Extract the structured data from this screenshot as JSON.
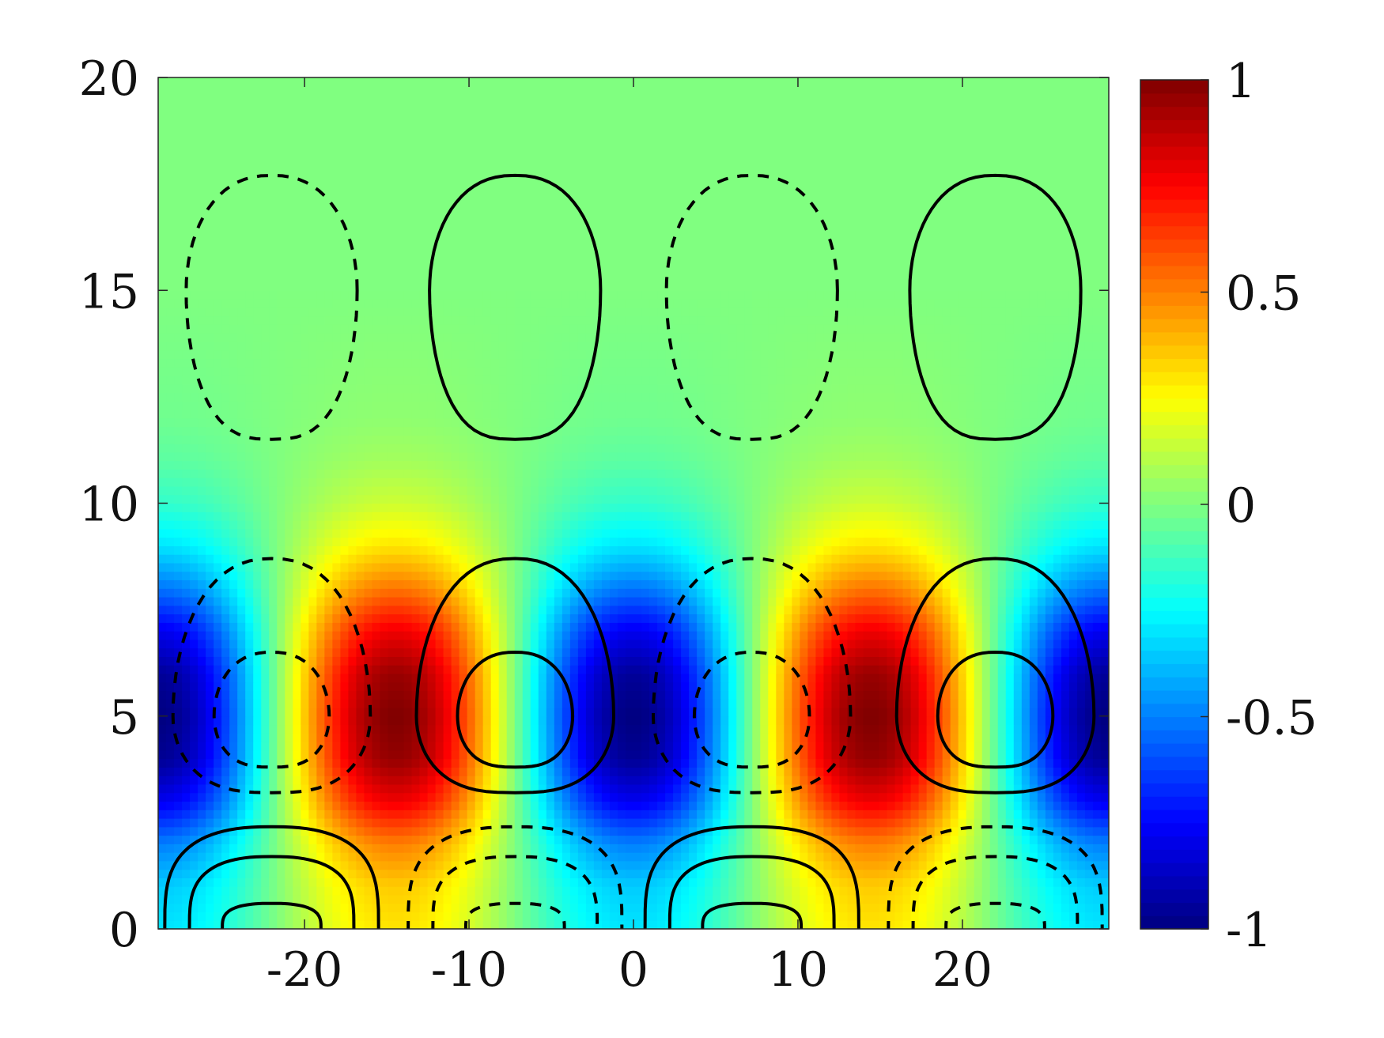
{
  "chart_data": {
    "type": "heatmap",
    "title": "",
    "xlabel": "",
    "ylabel": "",
    "xlim": [
      -28.9,
      28.9
    ],
    "ylim": [
      0,
      20
    ],
    "x_ticks": [
      -20,
      -10,
      0,
      10,
      20
    ],
    "x_tick_labels": [
      "-20",
      "-10",
      "0",
      "10",
      "20"
    ],
    "y_ticks": [
      0,
      5,
      10,
      15,
      20
    ],
    "y_tick_labels": [
      "0",
      "5",
      "10",
      "15",
      "20"
    ],
    "colormap": "jet",
    "colorbar": {
      "range": [
        -1,
        1
      ],
      "ticks": [
        -1,
        -0.5,
        0,
        0.5,
        1
      ],
      "tick_labels": [
        "-1",
        "-0.5",
        "0",
        "0.5",
        "1"
      ]
    },
    "field": {
      "description_level": "normalized field value",
      "wavelength_x": 28.9,
      "row_profile": {
        "y": [
          0,
          1,
          2,
          3,
          4,
          5,
          6,
          7,
          8,
          9,
          10,
          11,
          12,
          13,
          14,
          15,
          16,
          17,
          18,
          19,
          20
        ],
        "amplitude": [
          0.3,
          0.35,
          0.5,
          0.78,
          0.96,
          1.0,
          0.95,
          0.78,
          0.52,
          0.3,
          0.15,
          0.07,
          0.03,
          0.02,
          0.01,
          0.0,
          0.0,
          0.0,
          0.0,
          0.0,
          0.0
        ]
      },
      "extrema": [
        {
          "x": -14.5,
          "y": 5,
          "value": 1
        },
        {
          "x": 0,
          "y": 5,
          "value": -1
        },
        {
          "x": 14.5,
          "y": 5,
          "value": 1
        },
        {
          "x": -28.9,
          "y": 5,
          "value": -1
        },
        {
          "x": 28.9,
          "y": 5,
          "value": -1
        }
      ]
    },
    "contours": {
      "line_color": "#000000",
      "solid": "positive levels",
      "dashed": "negative levels",
      "families": [
        {
          "x_center": -22,
          "y_center": 15,
          "half_width": 5.2,
          "y_top": 17.7,
          "y_bottom": 11.5,
          "style": "dashed"
        },
        {
          "x_center": -7.2,
          "y_center": 15,
          "half_width": 5.2,
          "y_top": 17.7,
          "y_bottom": 11.5,
          "style": "solid"
        },
        {
          "x_center": 7.2,
          "y_center": 15,
          "half_width": 5.2,
          "y_top": 17.7,
          "y_bottom": 11.5,
          "style": "dashed"
        },
        {
          "x_center": 22,
          "y_center": 15,
          "half_width": 5.2,
          "y_top": 17.7,
          "y_bottom": 11.5,
          "style": "solid"
        },
        {
          "x_center": -22,
          "y_center": 5,
          "half_width": 6.0,
          "y_top": 8.7,
          "y_bottom": 3.2,
          "style": "dashed"
        },
        {
          "x_center": -7.2,
          "y_center": 5,
          "half_width": 6.0,
          "y_top": 8.7,
          "y_bottom": 3.2,
          "style": "solid"
        },
        {
          "x_center": 7.2,
          "y_center": 5,
          "half_width": 6.0,
          "y_top": 8.7,
          "y_bottom": 3.2,
          "style": "dashed"
        },
        {
          "x_center": 22,
          "y_center": 5,
          "half_width": 6.0,
          "y_top": 8.7,
          "y_bottom": 3.2,
          "style": "solid"
        },
        {
          "x_center": -22,
          "y_center": 5,
          "half_width": 3.5,
          "y_top": 6.5,
          "y_bottom": 3.8,
          "style": "dashed"
        },
        {
          "x_center": -7.2,
          "y_center": 5,
          "half_width": 3.5,
          "y_top": 6.5,
          "y_bottom": 3.8,
          "style": "solid"
        },
        {
          "x_center": 7.2,
          "y_center": 5,
          "half_width": 3.5,
          "y_top": 6.5,
          "y_bottom": 3.8,
          "style": "dashed"
        },
        {
          "x_center": 22,
          "y_center": 5,
          "half_width": 3.5,
          "y_top": 6.5,
          "y_bottom": 3.8,
          "style": "solid"
        },
        {
          "x_center": -22,
          "y_center": 0,
          "half_width": 6.5,
          "y_top": 2.4,
          "y_bottom": 0,
          "style": "solid"
        },
        {
          "x_center": -22,
          "y_center": 0,
          "half_width": 5.0,
          "y_top": 1.7,
          "y_bottom": 0,
          "style": "solid"
        },
        {
          "x_center": -22,
          "y_center": 0,
          "half_width": 3.0,
          "y_top": 0.6,
          "y_bottom": 0,
          "style": "solid"
        },
        {
          "x_center": -7.2,
          "y_center": 0,
          "half_width": 6.5,
          "y_top": 2.4,
          "y_bottom": 0,
          "style": "dashed"
        },
        {
          "x_center": -7.2,
          "y_center": 0,
          "half_width": 5.0,
          "y_top": 1.7,
          "y_bottom": 0,
          "style": "dashed"
        },
        {
          "x_center": -7.2,
          "y_center": 0,
          "half_width": 3.0,
          "y_top": 0.6,
          "y_bottom": 0,
          "style": "dashed"
        },
        {
          "x_center": 7.2,
          "y_center": 0,
          "half_width": 6.5,
          "y_top": 2.4,
          "y_bottom": 0,
          "style": "solid"
        },
        {
          "x_center": 7.2,
          "y_center": 0,
          "half_width": 5.0,
          "y_top": 1.7,
          "y_bottom": 0,
          "style": "solid"
        },
        {
          "x_center": 7.2,
          "y_center": 0,
          "half_width": 3.0,
          "y_top": 0.6,
          "y_bottom": 0,
          "style": "solid"
        },
        {
          "x_center": 22,
          "y_center": 0,
          "half_width": 6.5,
          "y_top": 2.4,
          "y_bottom": 0,
          "style": "dashed"
        },
        {
          "x_center": 22,
          "y_center": 0,
          "half_width": 5.0,
          "y_top": 1.7,
          "y_bottom": 0,
          "style": "dashed"
        },
        {
          "x_center": 22,
          "y_center": 0,
          "half_width": 3.0,
          "y_top": 0.6,
          "y_bottom": 0,
          "style": "dashed"
        }
      ]
    }
  }
}
